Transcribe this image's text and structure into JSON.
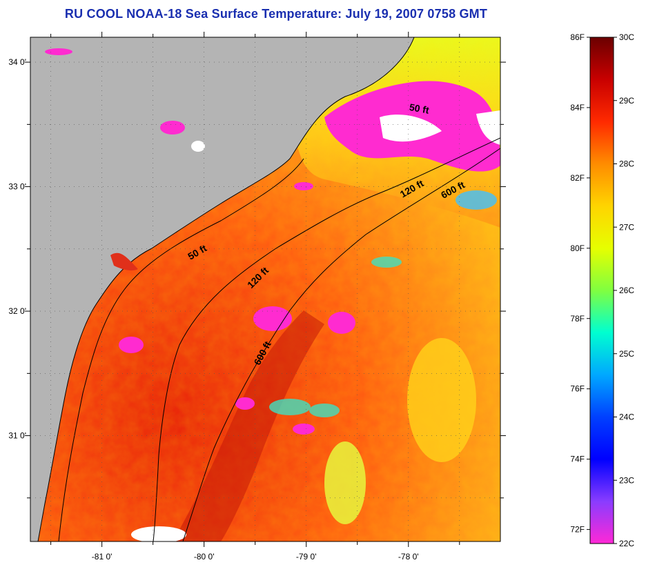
{
  "title": "RU COOL  NOAA-18  Sea Surface Temperature:  July 19, 2007 0758 GMT",
  "map": {
    "lon_range": [
      -81.7,
      -77.1
    ],
    "lat_range": [
      30.15,
      34.2
    ],
    "lon_ticks": [
      {
        "value": -81,
        "label": "-81 0'"
      },
      {
        "value": -80,
        "label": "-80 0'"
      },
      {
        "value": -79,
        "label": "-79 0'"
      },
      {
        "value": -78,
        "label": "-78 0'"
      }
    ],
    "lat_ticks": [
      {
        "value": 34,
        "label": "34 0'"
      },
      {
        "value": 33,
        "label": "33 0'"
      },
      {
        "value": 32,
        "label": "32 0'"
      },
      {
        "value": 31,
        "label": "31 0'"
      }
    ],
    "contour_labels": [
      {
        "label": "50 ft",
        "lon": -77.9,
        "lat": 33.6,
        "rotation": 10
      },
      {
        "label": "120 ft",
        "lon": -77.95,
        "lat": 32.96,
        "rotation": -30
      },
      {
        "label": "600 ft",
        "lon": -77.55,
        "lat": 32.95,
        "rotation": -28
      },
      {
        "label": "50 ft",
        "lon": -80.05,
        "lat": 32.45,
        "rotation": -30
      },
      {
        "label": "120 ft",
        "lon": -79.45,
        "lat": 32.25,
        "rotation": -45
      },
      {
        "label": "600 ft",
        "lon": -79.4,
        "lat": 31.65,
        "rotation": -62
      }
    ],
    "colors": {
      "land": "#b4b4b4",
      "ocean_warm": "#f03c14",
      "ocean_mid": "#ff7a1a",
      "cold_patch": "#ff2bd0",
      "cloud": "#ffffff",
      "tick_color": "#000000"
    }
  },
  "colorbar": {
    "min_c": 22,
    "max_c": 30,
    "celsius_labels": [
      "30C",
      "29C",
      "28C",
      "27C",
      "26C",
      "25C",
      "24C",
      "23C",
      "22C"
    ],
    "fahrenheit_labels": [
      "86F",
      "84F",
      "82F",
      "80F",
      "78F",
      "76F",
      "74F",
      "72F"
    ],
    "fahrenheit_values": [
      86,
      84,
      82,
      80,
      78,
      76,
      74,
      72
    ],
    "gradient_stops": [
      "#6b0000",
      "#c80000",
      "#ff2a00",
      "#ff8c00",
      "#ffd400",
      "#e6ff00",
      "#80ff40",
      "#00ffd0",
      "#00a8ff",
      "#0040ff",
      "#0000ff",
      "#8a3cff",
      "#ff28d6"
    ]
  }
}
